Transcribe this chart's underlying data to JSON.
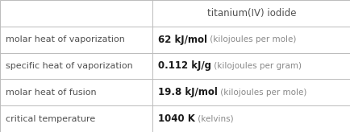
{
  "title": "titanium(IV) iodide",
  "rows": [
    {
      "label": "molar heat of vaporization",
      "value_bold": "62 kJ/mol",
      "value_light": " (kilojoules per mole)"
    },
    {
      "label": "specific heat of vaporization",
      "value_bold": "0.112 kJ/g",
      "value_light": " (kilojoules per gram)"
    },
    {
      "label": "molar heat of fusion",
      "value_bold": "19.8 kJ/mol",
      "value_light": " (kilojoules per mole)"
    },
    {
      "label": "critical temperature",
      "value_bold": "1040 K",
      "value_light": " (kelvins)"
    }
  ],
  "bg_color": "#ffffff",
  "line_color": "#bbbbbb",
  "label_color": "#505050",
  "value_bold_color": "#1a1a1a",
  "value_light_color": "#888888",
  "title_color": "#505050",
  "col_split": 0.435,
  "title_fontsize": 8.5,
  "label_fontsize": 8.0,
  "value_bold_fontsize": 8.5,
  "value_light_fontsize": 7.5
}
